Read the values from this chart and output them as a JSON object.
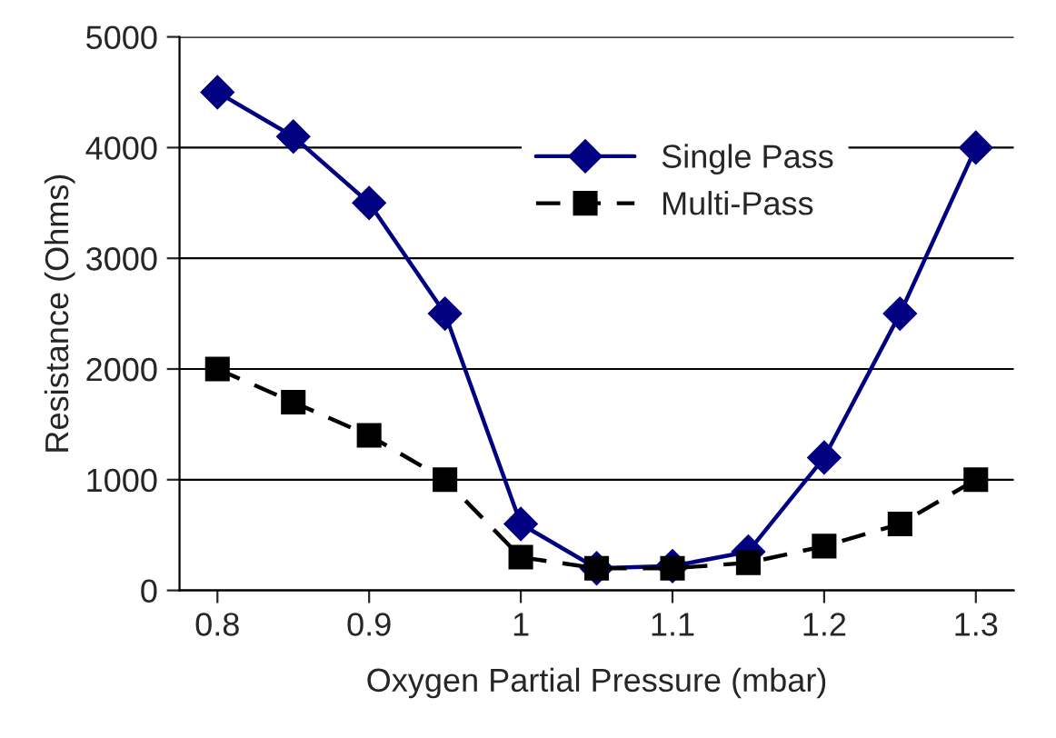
{
  "chart_data": {
    "type": "line",
    "xlabel": "Oxygen Partial Pressure (mbar)",
    "ylabel": "Resistance (Ohms)",
    "categories": [
      "0.8",
      null,
      "0.9",
      null,
      "1",
      null,
      "1.1",
      null,
      "1.2",
      null,
      "1.3"
    ],
    "series": [
      {
        "name": "Single Pass",
        "color": "#000080",
        "marker": "diamond",
        "line_style": "solid",
        "values": [
          4500,
          4100,
          3500,
          2500,
          600,
          200,
          220,
          350,
          1200,
          2500,
          4000
        ]
      },
      {
        "name": "Multi-Pass",
        "color": "#000000",
        "marker": "square",
        "line_style": "dashed",
        "values": [
          2000,
          1700,
          1400,
          1000,
          300,
          200,
          200,
          250,
          400,
          600,
          1000
        ]
      }
    ],
    "ylim": [
      0,
      5000
    ],
    "yticks": [
      0,
      1000,
      2000,
      3000,
      4000,
      5000
    ],
    "grid": "y",
    "legend": "top right"
  }
}
